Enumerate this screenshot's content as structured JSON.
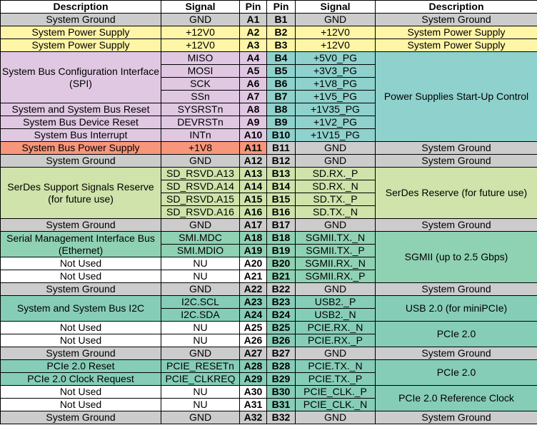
{
  "headers": [
    "Description",
    "Signal",
    "Pin",
    "Pin",
    "Signal",
    "Description"
  ],
  "rows": [
    {
      "ldesc": "System Ground",
      "lsig": "GND",
      "a": "A1",
      "b": "B1",
      "rsig": "GND",
      "rdesc": "System Ground"
    },
    {
      "ldesc": "System Power Supply",
      "lsig": "+12V0",
      "a": "A2",
      "b": "B2",
      "rsig": "+12V0",
      "rdesc": "System Power Supply"
    },
    {
      "ldesc": "System Power Supply",
      "lsig": "+12V0",
      "a": "A3",
      "b": "B3",
      "rsig": "+12V0",
      "rdesc": "System Power Supply"
    },
    {
      "ldesc": "System Bus Configuration Interface (SPI)",
      "lsig": "MISO",
      "a": "A4",
      "b": "B4",
      "rsig": "+5V0_PG",
      "rdesc": "Power Supplies Start-Up Control"
    },
    {
      "lsig": "MOSI",
      "a": "A5",
      "b": "B5",
      "rsig": "+3V3_PG"
    },
    {
      "lsig": "SCK",
      "a": "A6",
      "b": "B6",
      "rsig": "+1V8_PG"
    },
    {
      "lsig": "SSn",
      "a": "A7",
      "b": "B7",
      "rsig": "+1V5_PG"
    },
    {
      "ldesc": "System and System Bus Reset",
      "lsig": "SYSRSTn",
      "a": "A8",
      "b": "B8",
      "rsig": "+1V35_PG"
    },
    {
      "ldesc": "System Bus Device Reset",
      "lsig": "DEVRSTn",
      "a": "A9",
      "b": "B9",
      "rsig": "+1V2_PG"
    },
    {
      "ldesc": "System Bus Interrupt",
      "lsig": "INTn",
      "a": "A10",
      "b": "B10",
      "rsig": "+1V15_PG"
    },
    {
      "ldesc": "System Bus Power Supply",
      "lsig": "+1V8",
      "a": "A11",
      "b": "B11",
      "rsig": "GND",
      "rdesc": "System Ground"
    },
    {
      "ldesc": "System Ground",
      "lsig": "GND",
      "a": "A12",
      "b": "B12",
      "rsig": "GND",
      "rdesc": "System Ground"
    },
    {
      "ldesc": "SerDes Support Signals Reserve (for future use)",
      "lsig": "SD_RSVD.A13",
      "a": "A13",
      "b": "B13",
      "rsig": "SD.RX._P",
      "rdesc": "SerDes Reserve (for future use)"
    },
    {
      "lsig": "SD_RSVD.A14",
      "a": "A14",
      "b": "B14",
      "rsig": "SD.RX._N"
    },
    {
      "lsig": "SD_RSVD.A15",
      "a": "A15",
      "b": "B15",
      "rsig": "SD.TX._P"
    },
    {
      "lsig": "SD_RSVD.A16",
      "a": "A16",
      "b": "B16",
      "rsig": "SD.TX._N"
    },
    {
      "ldesc": "System Ground",
      "lsig": "GND",
      "a": "A17",
      "b": "B17",
      "rsig": "GND",
      "rdesc": "System Ground"
    },
    {
      "ldesc": "Serial Management Interface Bus (Ethernet)",
      "lsig": "SMI.MDC",
      "a": "A18",
      "b": "B18",
      "rsig": "SGMII.TX._N",
      "rdesc": "SGMII (up to 2.5 Gbps)"
    },
    {
      "lsig": "SMI.MDIO",
      "a": "A19",
      "b": "B19",
      "rsig": "SGMII.TX._P"
    },
    {
      "ldesc": "Not Used",
      "lsig": "NU",
      "a": "A20",
      "b": "B20",
      "rsig": "SGMII.RX._N"
    },
    {
      "ldesc": "Not Used",
      "lsig": "NU",
      "a": "A21",
      "b": "B21",
      "rsig": "SGMII.RX._P"
    },
    {
      "ldesc": "System Ground",
      "lsig": "GND",
      "a": "A22",
      "b": "B22",
      "rsig": "GND",
      "rdesc": "System Ground"
    },
    {
      "ldesc": "System and System Bus I2C",
      "lsig": "I2C.SCL",
      "a": "A23",
      "b": "B23",
      "rsig": "USB2._P",
      "rdesc": "USB 2.0 (for miniPCIe)"
    },
    {
      "lsig": "I2C.SDA",
      "a": "A24",
      "b": "B24",
      "rsig": "USB2._N"
    },
    {
      "ldesc": "Not Used",
      "lsig": "NU",
      "a": "A25",
      "b": "B25",
      "rsig": "PCIE.RX._N",
      "rdesc": "PCIe 2.0"
    },
    {
      "ldesc": "Not Used",
      "lsig": "NU",
      "a": "A26",
      "b": "B26",
      "rsig": "PCIE.RX._P"
    },
    {
      "ldesc": "System Ground",
      "lsig": "GND",
      "a": "A27",
      "b": "B27",
      "rsig": "GND",
      "rdesc": "System Ground"
    },
    {
      "ldesc": "PCIe 2.0 Reset",
      "lsig": "PCIE_RESETn",
      "a": "A28",
      "b": "B28",
      "rsig": "PCIE.TX._N",
      "rdesc": "PCIe 2.0"
    },
    {
      "ldesc": "PCIe 2.0 Clock Request",
      "lsig": "PCIE_CLKREQ",
      "a": "A29",
      "b": "B29",
      "rsig": "PCIE.TX._P"
    },
    {
      "ldesc": "Not Used",
      "lsig": "NU",
      "a": "A30",
      "b": "B30",
      "rsig": "PCIE_CLK._P",
      "rdesc": "PCIe 2.0 Reference Clock"
    },
    {
      "ldesc": "Not Used",
      "lsig": "NU",
      "a": "A31",
      "b": "B31",
      "rsig": "PCIE_CLK._N"
    },
    {
      "ldesc": "System Ground",
      "lsig": "GND",
      "a": "A32",
      "b": "B32",
      "rsig": "GND",
      "rdesc": "System Ground"
    }
  ],
  "colors": {
    "ground": "#cccccc",
    "power": "#fff5a6",
    "spi": "#e0c8e3",
    "startup": "#8fd1cc",
    "bus_power": "#f7967a",
    "serdes": "#cfe3aa",
    "sgmii": "#8fd1b3",
    "i2c_usb_pcie": "#86cdb8",
    "not_used": "#ffffff"
  }
}
